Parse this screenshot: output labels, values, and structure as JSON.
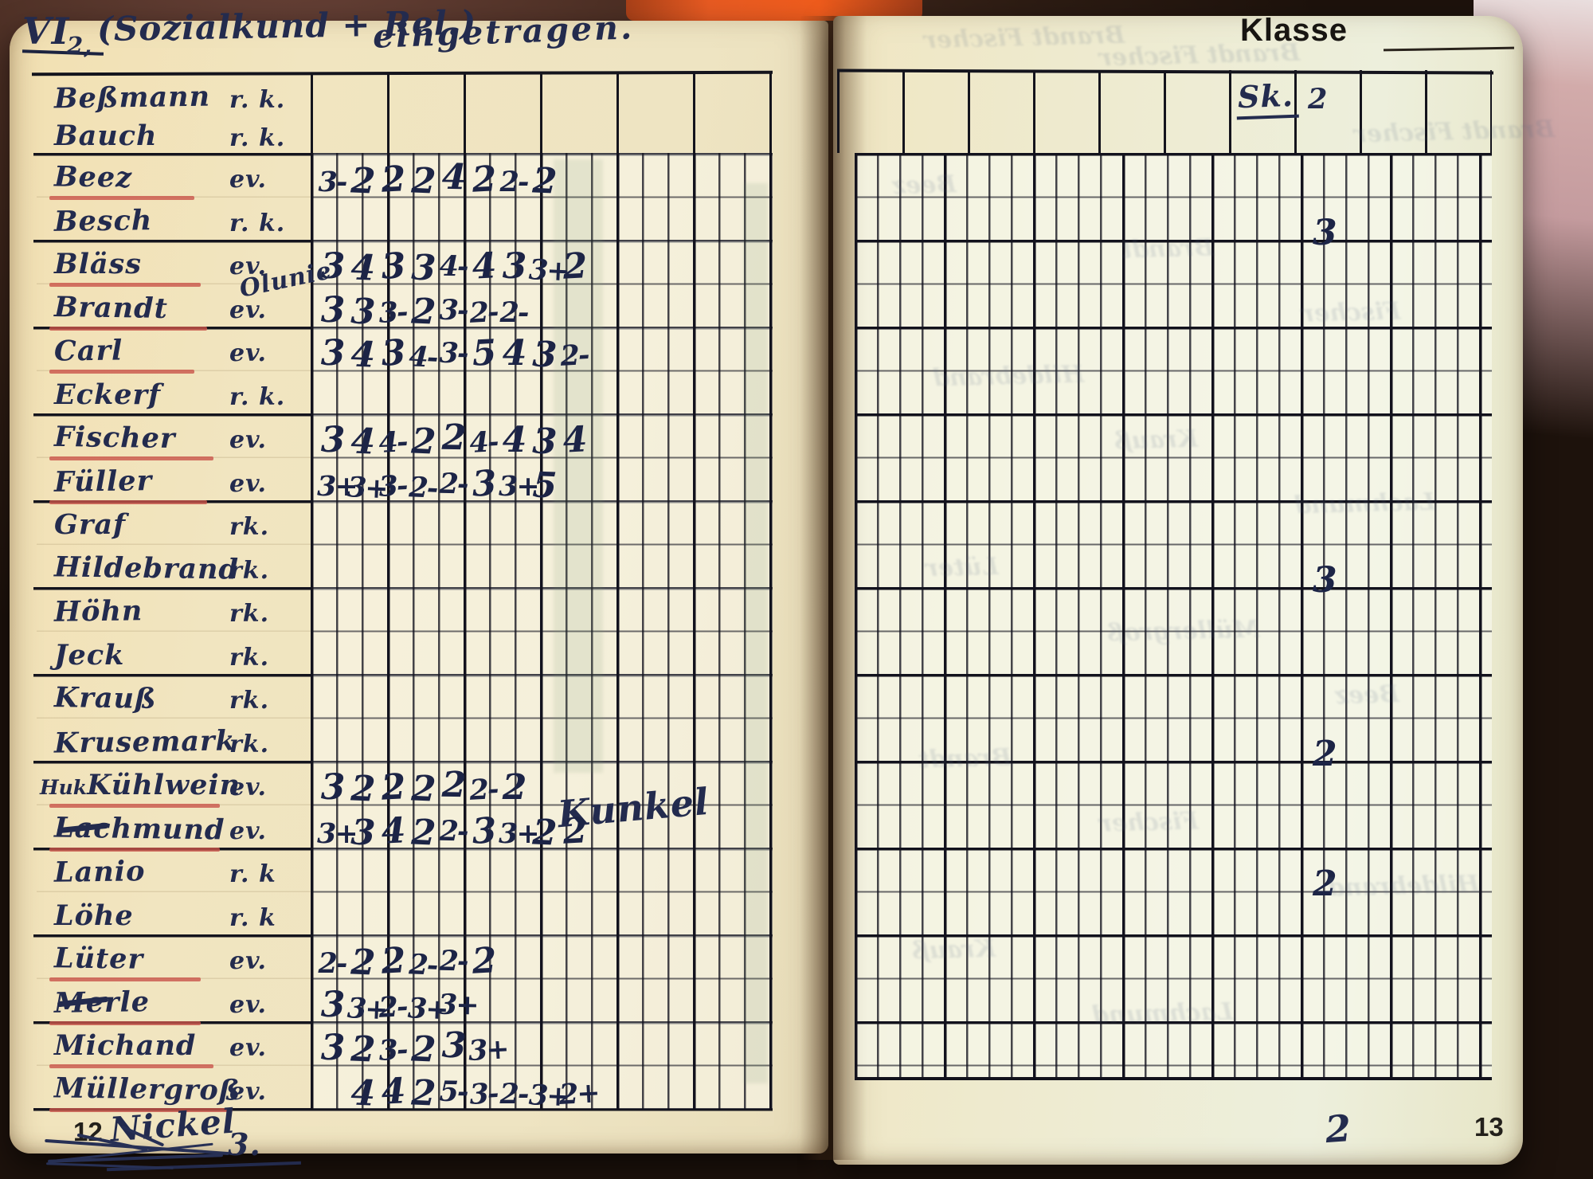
{
  "header": {
    "class_roman": "VI",
    "class_sub": "2,",
    "subject": "(Sozialkund + Rel.)",
    "status_note": "eingetragen.",
    "right_label": "Klasse"
  },
  "left_page": {
    "page_number": "12",
    "footer_added_name": "Nickel",
    "footer_mark": "3.",
    "students": [
      {
        "name": "Beßmann",
        "religion": "r. k."
      },
      {
        "name": "Bauch",
        "religion": "r. k."
      },
      {
        "name": "Beez",
        "religion": "ev.",
        "ev": true,
        "grades": [
          "3-",
          "2",
          "2",
          "2",
          "4",
          "2",
          "2-",
          "2"
        ]
      },
      {
        "name": "Besch",
        "religion": "r. k.",
        "sk": "3"
      },
      {
        "name": "Bläss",
        "religion": "ev.",
        "ev": true,
        "grades": [
          "3",
          "4",
          "3",
          "3",
          "4-",
          "4",
          "3",
          "3+",
          "2"
        ]
      },
      {
        "name": "Brandt",
        "religion": "ev.",
        "ev": true,
        "note_above": "Olunie",
        "grades": [
          "3",
          "3",
          "3-",
          "2",
          "3-",
          "2-",
          "2-"
        ]
      },
      {
        "name": "Carl",
        "religion": "ev.",
        "ev": true,
        "grades": [
          "3",
          "4",
          "3",
          "4-",
          "3-",
          "5",
          "4",
          "3",
          "2-"
        ]
      },
      {
        "name": "Eckerf",
        "religion": "r. k."
      },
      {
        "name": "Fischer",
        "religion": "ev.",
        "ev": true,
        "grades": [
          "3",
          "4",
          "4-",
          "2",
          "2",
          "4-",
          "4",
          "3",
          "4"
        ]
      },
      {
        "name": "Füller",
        "religion": "ev.",
        "ev": true,
        "grades": [
          "3+",
          "3+",
          "3-",
          "2-",
          "2-",
          "3",
          "3+",
          "5"
        ]
      },
      {
        "name": "Graf",
        "religion": "rk."
      },
      {
        "name": "Hildebrand",
        "religion": "rk.",
        "sk": "3"
      },
      {
        "name": "Höhn",
        "religion": "rk."
      },
      {
        "name": "Jeck",
        "religion": "rk."
      },
      {
        "name": "Krauß",
        "religion": "rk."
      },
      {
        "name": "Krusemark",
        "religion": "rk.",
        "sk": "2"
      },
      {
        "name": "Kühlwein",
        "prefix": "Huk",
        "religion": "ev.",
        "ev": true,
        "note_right": "Kunkel",
        "grades": [
          "3",
          "2",
          "2",
          "2",
          "2",
          "2-",
          "2"
        ]
      },
      {
        "name": "Lachmund",
        "religion": "ev.",
        "ev": true,
        "dash": true,
        "grades": [
          "3+",
          "3",
          "4",
          "2",
          "2-",
          "3",
          "3+",
          "2",
          "2"
        ]
      },
      {
        "name": "Lanio",
        "religion": "r. k",
        "sk": "2"
      },
      {
        "name": "Löhe",
        "religion": "r. k"
      },
      {
        "name": "Lüter",
        "religion": "ev.",
        "ev": true,
        "grades": [
          "2-",
          "2",
          "2",
          "2-",
          "2-",
          "2"
        ]
      },
      {
        "name": "Merle",
        "religion": "ev.",
        "ev": true,
        "dash": true,
        "grades": [
          "3",
          "3+",
          "2-",
          "3+",
          "3+"
        ]
      },
      {
        "name": "Michand",
        "religion": "ev.",
        "ev": true,
        "grades": [
          "3",
          "2",
          "3-",
          "2",
          "3",
          "3+"
        ]
      },
      {
        "name": "Müllergroß",
        "religion": "ev.",
        "ev": true,
        "grades": [
          "",
          "4",
          "4",
          "2",
          "5-",
          "3-",
          "2-",
          "3+",
          "2+"
        ]
      }
    ]
  },
  "right_page": {
    "page_number": "13",
    "column_header": "Sk.",
    "column_header_value": "2",
    "bottom_mark": "2"
  },
  "colors": {
    "ink": "#232b4e",
    "grid": "#14141d",
    "red_underline": "#c9544a",
    "paper_left": "#f1e3bc",
    "paper_right": "#edeeda",
    "cover_orange": "#e65a22"
  }
}
